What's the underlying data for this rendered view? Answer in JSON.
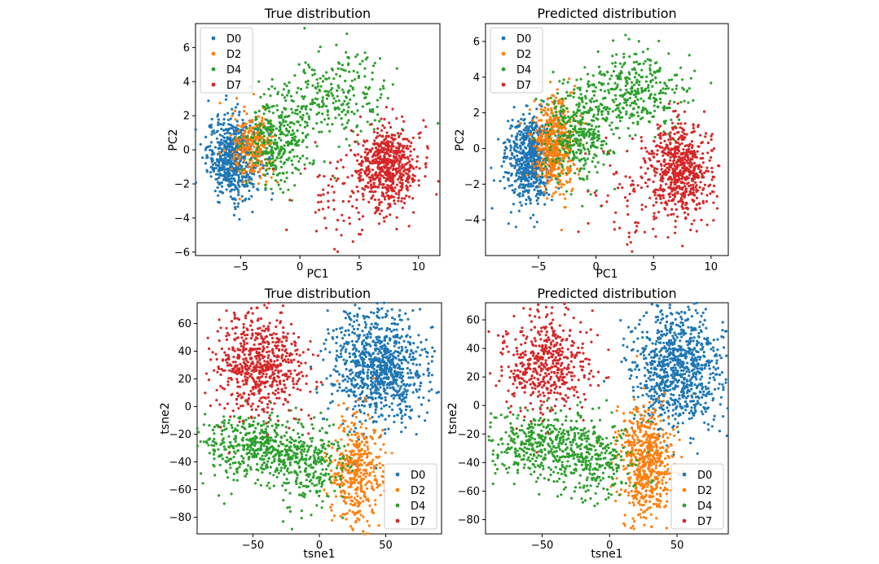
{
  "colors": {
    "D0": "#1f77b4",
    "D2": "#ff7f0e",
    "D4": "#2ca02c",
    "D7": "#d62728"
  },
  "chart_data": [
    {
      "type": "scatter",
      "id": "pca-true",
      "title": "True distribution",
      "xlabel": "PC1",
      "ylabel": "PC2",
      "xlim": [
        -8.8,
        11.8
      ],
      "ylim": [
        -6.2,
        7.4
      ],
      "xticks": [
        -5,
        0,
        5,
        10
      ],
      "yticks": [
        -6,
        -4,
        -2,
        0,
        2,
        4,
        6
      ],
      "legend": "top-left",
      "grid": false,
      "series": [
        {
          "name": "D0",
          "count": 650,
          "clusters": [
            {
              "cx": -5.6,
              "cy": -0.4,
              "sx": 1.1,
              "sy": 1.2
            }
          ]
        },
        {
          "name": "D2",
          "count": 260,
          "clusters": [
            {
              "cx": -3.9,
              "cy": 0.1,
              "sx": 0.9,
              "sy": 1.0
            }
          ]
        },
        {
          "name": "D4",
          "count": 580,
          "clusters": [
            {
              "cx": -1.8,
              "cy": 0.6,
              "sx": 1.4,
              "sy": 1.3,
              "w": 0.55
            },
            {
              "cx": 3.0,
              "cy": 3.2,
              "sx": 2.4,
              "sy": 1.2,
              "w": 0.45
            }
          ]
        },
        {
          "name": "D7",
          "count": 700,
          "clusters": [
            {
              "cx": 7.4,
              "cy": -1.0,
              "sx": 1.3,
              "sy": 1.2,
              "w": 0.9
            },
            {
              "cx": 3.5,
              "cy": -2.6,
              "sx": 2.0,
              "sy": 1.6,
              "w": 0.1
            }
          ]
        }
      ]
    },
    {
      "type": "scatter",
      "id": "pca-pred",
      "title": "Predicted distribution",
      "xlabel": "PC1",
      "ylabel": "PC2",
      "xlim": [
        -9.6,
        11.5
      ],
      "ylim": [
        -6.0,
        7.0
      ],
      "xticks": [
        -5,
        0,
        5,
        10
      ],
      "yticks": [
        -4,
        -2,
        0,
        2,
        4,
        6
      ],
      "legend": "top-left",
      "grid": false,
      "series": [
        {
          "name": "D0",
          "count": 650,
          "clusters": [
            {
              "cx": -5.8,
              "cy": -0.6,
              "sx": 1.0,
              "sy": 1.2
            }
          ]
        },
        {
          "name": "D2",
          "count": 520,
          "clusters": [
            {
              "cx": -3.6,
              "cy": 0.2,
              "sx": 0.9,
              "sy": 1.3
            }
          ]
        },
        {
          "name": "D4",
          "count": 700,
          "clusters": [
            {
              "cx": -1.6,
              "cy": 0.8,
              "sx": 1.4,
              "sy": 1.3,
              "w": 0.5
            },
            {
              "cx": 3.2,
              "cy": 3.3,
              "sx": 2.3,
              "sy": 1.1,
              "w": 0.5
            }
          ]
        },
        {
          "name": "D7",
          "count": 700,
          "clusters": [
            {
              "cx": 7.3,
              "cy": -1.2,
              "sx": 1.3,
              "sy": 1.3,
              "w": 0.88
            },
            {
              "cx": 3.5,
              "cy": -2.8,
              "sx": 2.0,
              "sy": 1.6,
              "w": 0.12
            }
          ]
        }
      ]
    },
    {
      "type": "scatter",
      "id": "tsne-true",
      "title": "True distribution",
      "xlabel": "tsne1",
      "ylabel": "tsne2",
      "xlim": [
        -92,
        92
      ],
      "ylim": [
        -92,
        75
      ],
      "xticks": [
        -50,
        0,
        50
      ],
      "yticks": [
        -80,
        -60,
        -40,
        -20,
        0,
        20,
        40,
        60
      ],
      "legend": "bottom-right",
      "grid": false,
      "series": [
        {
          "name": "D0",
          "count": 900,
          "clusters": [
            {
              "cx": 45,
              "cy": 28,
              "sx": 18,
              "sy": 21
            }
          ]
        },
        {
          "name": "D2",
          "count": 420,
          "clusters": [
            {
              "cx": 27,
              "cy": -45,
              "sx": 10,
              "sy": 20
            }
          ]
        },
        {
          "name": "D4",
          "count": 700,
          "clusters": [
            {
              "cx": -45,
              "cy": -30,
              "sx": 22,
              "sy": 12,
              "w": 0.7
            },
            {
              "cx": -5,
              "cy": -45,
              "sx": 14,
              "sy": 16,
              "w": 0.3
            }
          ]
        },
        {
          "name": "D7",
          "count": 650,
          "clusters": [
            {
              "cx": -45,
              "cy": 30,
              "sx": 17,
              "sy": 18
            }
          ]
        }
      ]
    },
    {
      "type": "scatter",
      "id": "tsne-pred",
      "title": "Predicted distribution",
      "xlabel": "tsne1",
      "ylabel": "tsne2",
      "xlim": [
        -92,
        88
      ],
      "ylim": [
        -90,
        72
      ],
      "xticks": [
        -50,
        0,
        50
      ],
      "yticks": [
        -80,
        -60,
        -40,
        -20,
        0,
        20,
        40,
        60
      ],
      "legend": "bottom-right",
      "grid": false,
      "series": [
        {
          "name": "D0",
          "count": 900,
          "clusters": [
            {
              "cx": 50,
              "cy": 25,
              "sx": 17,
              "sy": 22
            }
          ]
        },
        {
          "name": "D2",
          "count": 600,
          "clusters": [
            {
              "cx": 27,
              "cy": -40,
              "sx": 10,
              "sy": 20
            }
          ]
        },
        {
          "name": "D4",
          "count": 650,
          "clusters": [
            {
              "cx": -45,
              "cy": -28,
              "sx": 22,
              "sy": 12,
              "w": 0.7
            },
            {
              "cx": -10,
              "cy": -40,
              "sx": 14,
              "sy": 15,
              "w": 0.3
            }
          ]
        },
        {
          "name": "D7",
          "count": 500,
          "clusters": [
            {
              "cx": -47,
              "cy": 30,
              "sx": 16,
              "sy": 18
            }
          ]
        }
      ]
    }
  ]
}
